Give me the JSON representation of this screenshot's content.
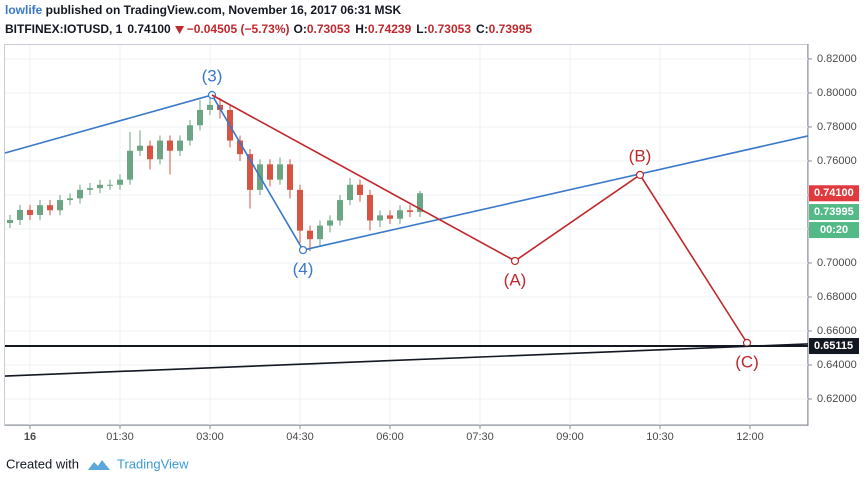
{
  "chart_data": {
    "type": "candlestick",
    "header": {
      "author": "lowlife",
      "published": " published on TradingView.com, November 16, 2017 06:31 MSK",
      "symbol": "BITFINEX:IOTUSD, 1",
      "price": "0.74100",
      "change": "−0.04505 (−5.73%)",
      "ohlc": [
        {
          "label": "O:",
          "value": "0.73053"
        },
        {
          "label": "H:",
          "value": "0.74239"
        },
        {
          "label": "L:",
          "value": "0.73053"
        },
        {
          "label": "C:",
          "value": "0.73995"
        }
      ]
    },
    "x": [
      -20,
      -10,
      0,
      10,
      20,
      30,
      40,
      50,
      60,
      70,
      80,
      90,
      100,
      110,
      120,
      130,
      140,
      150,
      160,
      170,
      180,
      190,
      200,
      210,
      220,
      230,
      240,
      250,
      260,
      270,
      280,
      290,
      300,
      310,
      320,
      330,
      340,
      350,
      360,
      370,
      380,
      390
    ],
    "open": [
      0.7235,
      0.7253,
      0.7312,
      0.7282,
      0.734,
      0.731,
      0.737,
      0.738,
      0.743,
      0.744,
      0.746,
      0.746,
      0.749,
      0.766,
      0.769,
      0.761,
      0.772,
      0.766,
      0.772,
      0.781,
      0.79,
      0.793,
      0.79,
      0.772,
      0.764,
      0.743,
      0.758,
      0.749,
      0.758,
      0.743,
      0.719,
      0.714,
      0.722,
      0.725,
      0.737,
      0.746,
      0.74,
      0.725,
      0.728,
      0.726,
      0.731,
      0.73
    ],
    "high": [
      0.7283,
      0.7342,
      0.7342,
      0.737,
      0.737,
      0.74,
      0.741,
      0.746,
      0.747,
      0.749,
      0.749,
      0.752,
      0.777,
      0.778,
      0.772,
      0.775,
      0.775,
      0.775,
      0.784,
      0.796,
      0.799,
      0.797,
      0.793,
      0.775,
      0.767,
      0.761,
      0.761,
      0.762,
      0.761,
      0.746,
      0.722,
      0.725,
      0.728,
      0.74,
      0.75,
      0.749,
      0.743,
      0.731,
      0.731,
      0.734,
      0.734,
      0.7424
    ],
    "low": [
      0.7205,
      0.7223,
      0.7252,
      0.7252,
      0.728,
      0.728,
      0.734,
      0.735,
      0.74,
      0.741,
      0.743,
      0.743,
      0.746,
      0.763,
      0.755,
      0.758,
      0.752,
      0.763,
      0.769,
      0.778,
      0.787,
      0.785,
      0.768,
      0.76,
      0.732,
      0.74,
      0.745,
      0.746,
      0.738,
      0.712,
      0.707,
      0.71,
      0.718,
      0.722,
      0.734,
      0.736,
      0.719,
      0.721,
      0.723,
      0.723,
      0.727,
      0.727
    ],
    "close": [
      0.7253,
      0.7312,
      0.7282,
      0.734,
      0.731,
      0.737,
      0.738,
      0.743,
      0.744,
      0.746,
      0.746,
      0.749,
      0.766,
      0.769,
      0.761,
      0.772,
      0.766,
      0.772,
      0.781,
      0.79,
      0.793,
      0.79,
      0.772,
      0.764,
      0.743,
      0.758,
      0.749,
      0.758,
      0.743,
      0.719,
      0.714,
      0.722,
      0.725,
      0.737,
      0.746,
      0.74,
      0.725,
      0.728,
      0.726,
      0.731,
      0.73,
      0.741
    ],
    "up_color": "#6ba583",
    "down_color": "#d75442",
    "xlim": [
      -25,
      778
    ],
    "ylim": [
      0.6047,
      0.8282
    ],
    "xticks": [
      {
        "value": 0,
        "label": "16"
      },
      {
        "value": 90,
        "label": "01:30"
      },
      {
        "value": 180,
        "label": "03:00"
      },
      {
        "value": 270,
        "label": "04:30"
      },
      {
        "value": 360,
        "label": "06:00"
      },
      {
        "value": 450,
        "label": "07:30"
      },
      {
        "value": 540,
        "label": "09:00"
      },
      {
        "value": 630,
        "label": "10:30"
      },
      {
        "value": 720,
        "label": "12:00"
      }
    ],
    "yticks": [
      {
        "value": 0.62,
        "label": "0.62000"
      },
      {
        "value": 0.64,
        "label": "0.64000"
      },
      {
        "value": 0.66,
        "label": "0.66000"
      },
      {
        "value": 0.68,
        "label": "0.68000"
      },
      {
        "value": 0.7,
        "label": "0.70000"
      },
      {
        "value": 0.72,
        "label": "0.72000"
      },
      {
        "value": 0.74,
        "label": "0.74000"
      },
      {
        "value": 0.76,
        "label": "0.76000"
      },
      {
        "value": 0.78,
        "label": "0.78000"
      },
      {
        "value": 0.8,
        "label": "0.80000"
      },
      {
        "value": 0.82,
        "label": "0.82000"
      }
    ],
    "grid": true,
    "drawings": [
      {
        "color": "#3a78c9",
        "x": [
          -25,
          182,
          273,
          778
        ],
        "y": [
          0.7647,
          0.7988,
          0.7076,
          0.7747
        ],
        "labels": [
          null,
          "(3)",
          "(4)",
          null
        ]
      },
      {
        "color": "#c0282d",
        "x": [
          182,
          485,
          610,
          717
        ],
        "y": [
          0.7988,
          0.7012,
          0.7518,
          0.653
        ],
        "labels": [
          null,
          "(A)",
          "(B)",
          "(C)"
        ]
      },
      {
        "color": "#131722",
        "x": [
          -25,
          778
        ],
        "y": [
          0.6335,
          0.6524
        ],
        "labels": [
          null,
          null
        ]
      }
    ],
    "price_markers": [
      {
        "value": 0.741,
        "label": "0.74100",
        "color": "#e0393e"
      },
      {
        "value": 0.73995,
        "label": "0.73995",
        "color": "#53b987"
      },
      {
        "value": 0.65115,
        "label": "0.65115",
        "color": "#131722",
        "line": true
      }
    ],
    "countdown": "00:20",
    "footer": {
      "created": "Created with",
      "brand": "TradingView"
    }
  }
}
